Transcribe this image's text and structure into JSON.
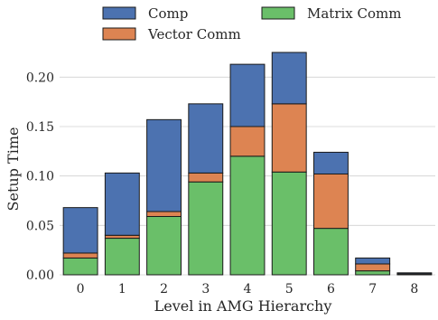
{
  "chart_data": {
    "type": "bar",
    "stacked": true,
    "categories": [
      "0",
      "1",
      "2",
      "3",
      "4",
      "5",
      "6",
      "7",
      "8"
    ],
    "series": [
      {
        "name": "Matrix Comm",
        "color": "#6abf69",
        "values": [
          0.017,
          0.037,
          0.059,
          0.094,
          0.12,
          0.104,
          0.047,
          0.004,
          0.001
        ]
      },
      {
        "name": "Vector Comm",
        "color": "#dd8452",
        "values": [
          0.005,
          0.003,
          0.005,
          0.009,
          0.03,
          0.069,
          0.055,
          0.007,
          0.0
        ]
      },
      {
        "name": "Comp",
        "color": "#4c72b0",
        "values": [
          0.046,
          0.063,
          0.093,
          0.07,
          0.063,
          0.052,
          0.022,
          0.006,
          0.001
        ]
      }
    ],
    "legend": {
      "placement": "top",
      "entries": [
        {
          "name": "Comp",
          "color": "#4c72b0"
        },
        {
          "name": "Matrix Comm",
          "color": "#6abf69"
        },
        {
          "name": "Vector Comm",
          "color": "#dd8452"
        }
      ]
    },
    "xlabel": "Level in AMG Hierarchy",
    "ylabel": "Setup Time",
    "ylim": [
      0,
      0.225
    ],
    "yticks": [
      "0.00",
      "0.05",
      "0.10",
      "0.15",
      "0.20"
    ],
    "grid": "horizontal"
  }
}
